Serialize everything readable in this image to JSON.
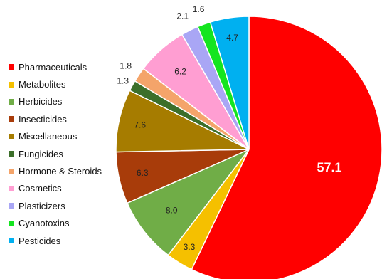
{
  "chart_data": {
    "type": "pie",
    "title": "",
    "legend_position": "left",
    "start_angle_deg": 0,
    "direction": "clockwise",
    "series": [
      {
        "name": "Pharmaceuticals",
        "value": 57.1,
        "color": "#ff0000",
        "label": "57.1"
      },
      {
        "name": "Metabolites",
        "value": 3.3,
        "color": "#f5c000",
        "label": "3.3"
      },
      {
        "name": "Herbicides",
        "value": 8.0,
        "color": "#70ad47",
        "label": "8.0"
      },
      {
        "name": "Insecticides",
        "value": 6.3,
        "color": "#a83c0a",
        "label": "6.3"
      },
      {
        "name": "Miscellaneous",
        "value": 7.6,
        "color": "#a67c00",
        "label": "7.6"
      },
      {
        "name": "Fungicides",
        "value": 1.3,
        "color": "#3c6f2a",
        "label": "1.3"
      },
      {
        "name": "Hormone & Steroids",
        "value": 1.8,
        "color": "#f4a46a",
        "label": "1.8"
      },
      {
        "name": "Cosmetics",
        "value": 6.2,
        "color": "#ff9ed2",
        "label": "6.2"
      },
      {
        "name": "Plasticizers",
        "value": 2.1,
        "color": "#a9a6f5",
        "label": "2.1"
      },
      {
        "name": "Cyanotoxins",
        "value": 1.6,
        "color": "#14e51f",
        "label": "1.6"
      },
      {
        "name": "Pesticides",
        "value": 4.7,
        "color": "#00b0f0",
        "label": "4.7"
      }
    ]
  }
}
